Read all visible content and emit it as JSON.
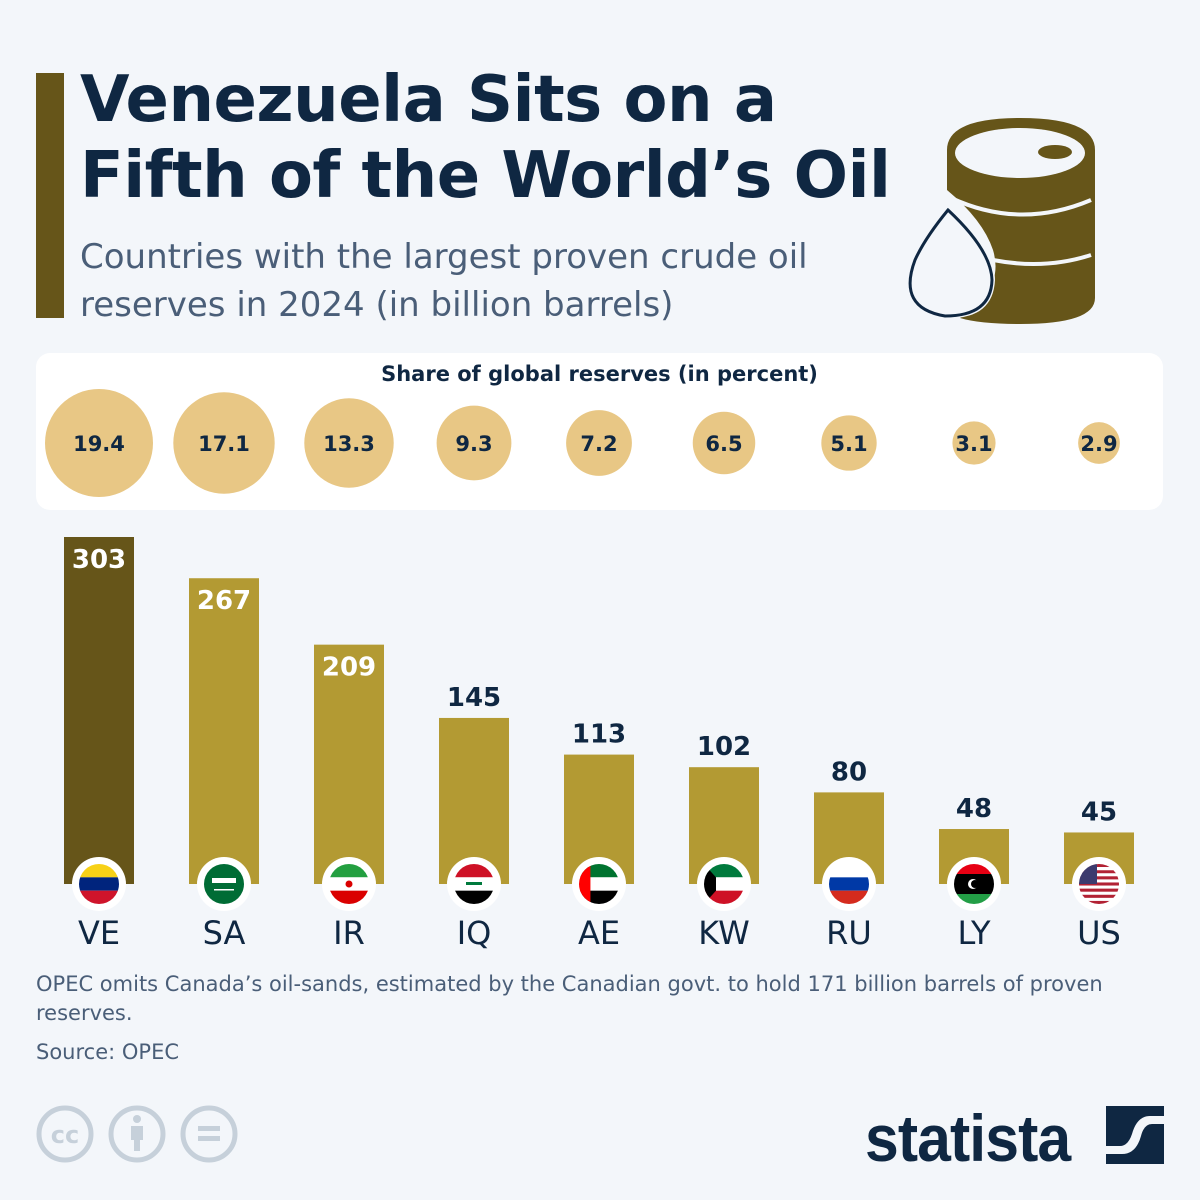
{
  "header": {
    "title": "Venezuela Sits on a Fifth of the World’s Oil",
    "subtitle": "Countries with the largest proven crude oil reserves in 2024 (in billion barrels)",
    "icon": "oil-barrel-drop-icon"
  },
  "chart_data": [
    {
      "type": "bubble",
      "title": "Share of global reserves (in percent)",
      "categories": [
        "VE",
        "SA",
        "IR",
        "IQ",
        "AE",
        "KW",
        "RU",
        "LY",
        "US"
      ],
      "values": [
        19.4,
        17.1,
        13.3,
        9.3,
        7.2,
        6.5,
        5.1,
        3.1,
        2.9
      ],
      "color": "#e8c785"
    },
    {
      "type": "bar",
      "title": "",
      "categories": [
        "VE",
        "SA",
        "IR",
        "IQ",
        "AE",
        "KW",
        "RU",
        "LY",
        "US"
      ],
      "values": [
        303,
        267,
        209,
        145,
        113,
        102,
        80,
        48,
        45
      ],
      "unit": "billion barrels",
      "ylim": [
        0,
        303
      ],
      "grid": false,
      "colors": {
        "highlight": "#665519",
        "default": "#b39a33"
      },
      "flags": [
        "venezuela-flag-icon",
        "saudi-arabia-flag-icon",
        "iran-flag-icon",
        "iraq-flag-icon",
        "uae-flag-icon",
        "kuwait-flag-icon",
        "russia-flag-icon",
        "libya-flag-icon",
        "usa-flag-icon"
      ]
    }
  ],
  "footer": {
    "note": "OPEC omits Canada’s oil-sands, estimated by the Canadian govt. to hold 171 billion barrels of proven reserves.",
    "source": "Source: OPEC",
    "license_icons": [
      "creative-commons-icon",
      "attribution-icon",
      "no-derivatives-icon"
    ],
    "brand": "statista"
  }
}
